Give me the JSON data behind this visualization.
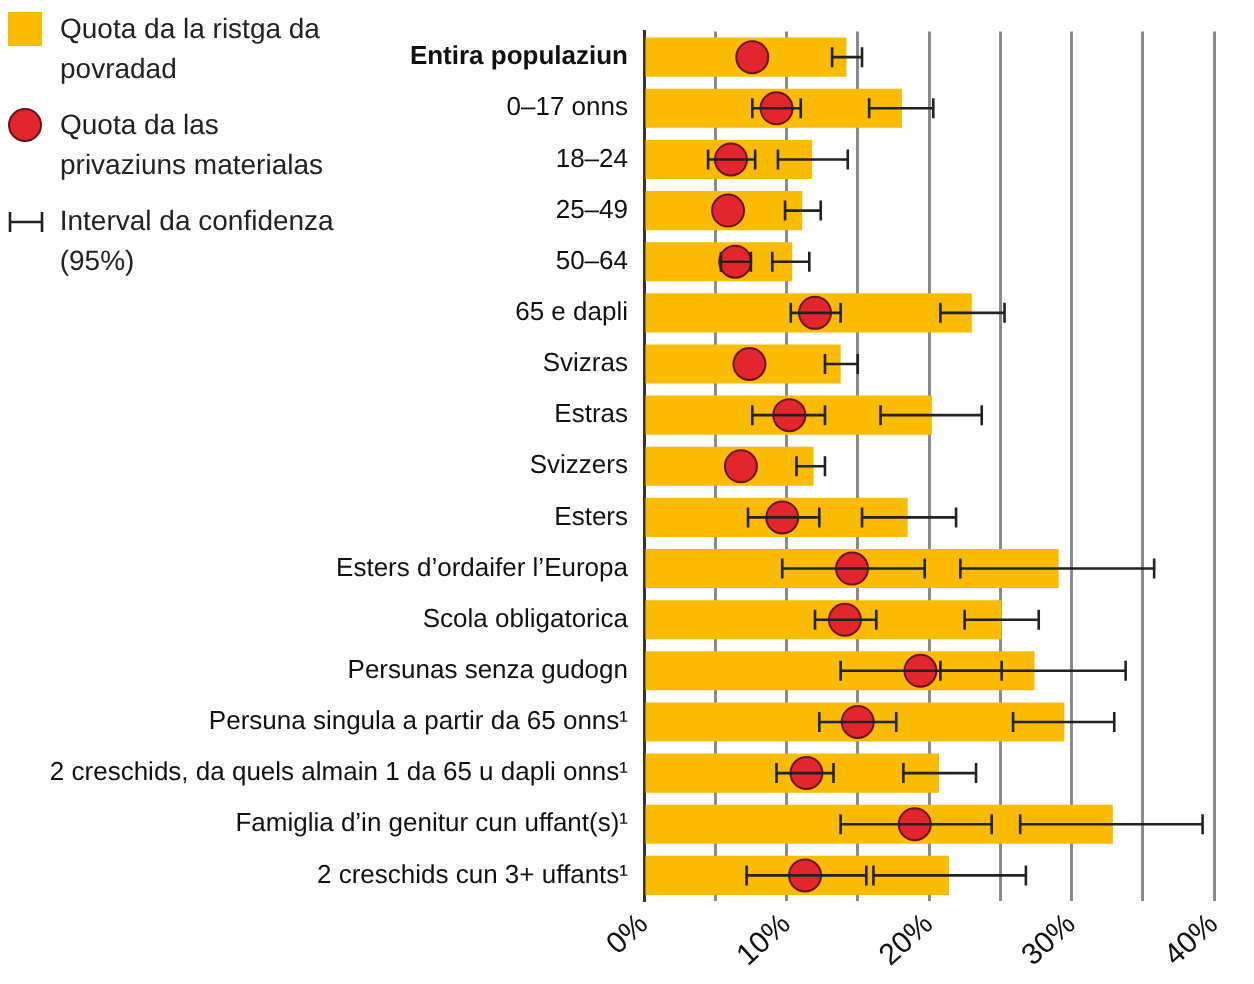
{
  "chart_data": {
    "type": "bar",
    "orientation": "horizontal",
    "categories": [
      "Entira populaziun",
      "0–17 onns",
      "18–24",
      "25–49",
      "50–64",
      "65 e dapli",
      "Svizras",
      "Estras",
      "Svizzers",
      "Esters",
      "Esters d’ordaifer l’Europa",
      "Scola obligatorica",
      "Persunas senza gudogn",
      "Persuna singula a partir da 65 onns¹",
      "2 creschids, da quels almain 1 da 65 u dapli onns¹",
      "Famiglia d’in genitur cun uffant(s)¹",
      "2 creschids cun 3+ uffants¹"
    ],
    "series": [
      {
        "name": "Quota da la ristga da povradad",
        "color": "#fbbb00",
        "values": [
          14.2,
          18.1,
          11.8,
          11.1,
          10.4,
          23.0,
          13.8,
          20.2,
          11.9,
          18.5,
          29.1,
          25.1,
          27.4,
          29.5,
          20.7,
          32.9,
          21.4
        ],
        "errors": [
          [
            13.2,
            15.3
          ],
          [
            15.8,
            20.3
          ],
          [
            9.4,
            14.3
          ],
          [
            9.9,
            12.4
          ],
          [
            9.0,
            11.6
          ],
          [
            20.8,
            25.3
          ],
          [
            12.7,
            15.0
          ],
          [
            16.6,
            23.7
          ],
          [
            10.7,
            12.7
          ],
          [
            15.3,
            21.9
          ],
          [
            22.2,
            35.8
          ],
          [
            22.5,
            27.7
          ],
          [
            20.8,
            33.8
          ],
          [
            25.9,
            33.0
          ],
          [
            18.2,
            23.3
          ],
          [
            26.4,
            39.2
          ],
          [
            16.1,
            26.8
          ]
        ]
      },
      {
        "name": "Quota da las privaziuns materialas",
        "type": "scatter",
        "color": "#e3262e",
        "marker": "circle",
        "values": [
          7.6,
          9.3,
          6.1,
          5.9,
          6.4,
          12.0,
          7.4,
          10.2,
          6.8,
          9.7,
          14.6,
          14.1,
          19.4,
          15.0,
          11.4,
          19.0,
          11.3
        ],
        "errors": [
          null,
          [
            7.6,
            11.0
          ],
          [
            4.5,
            7.8
          ],
          null,
          [
            5.4,
            7.5
          ],
          [
            10.3,
            13.8
          ],
          null,
          [
            7.6,
            12.7
          ],
          null,
          [
            7.3,
            12.3
          ],
          [
            9.7,
            19.7
          ],
          [
            12.0,
            16.3
          ],
          [
            13.8,
            25.1
          ],
          [
            12.3,
            17.7
          ],
          [
            9.3,
            13.3
          ],
          [
            13.8,
            24.4
          ],
          [
            7.2,
            15.6
          ]
        ]
      }
    ],
    "xlim": [
      0,
      40
    ],
    "xticks": [
      {
        "value": 0,
        "label": "0%"
      },
      {
        "value": 5,
        "label": null
      },
      {
        "value": 10,
        "label": "10%"
      },
      {
        "value": 15,
        "label": null
      },
      {
        "value": 20,
        "label": "20%"
      },
      {
        "value": 25,
        "label": null
      },
      {
        "value": 30,
        "label": "30%"
      },
      {
        "value": 35,
        "label": null
      },
      {
        "value": 40,
        "label": "40%"
      }
    ],
    "grid": "x",
    "legend": "top left",
    "annotations": [
      "Interval da confidenza (95%)"
    ]
  }
}
